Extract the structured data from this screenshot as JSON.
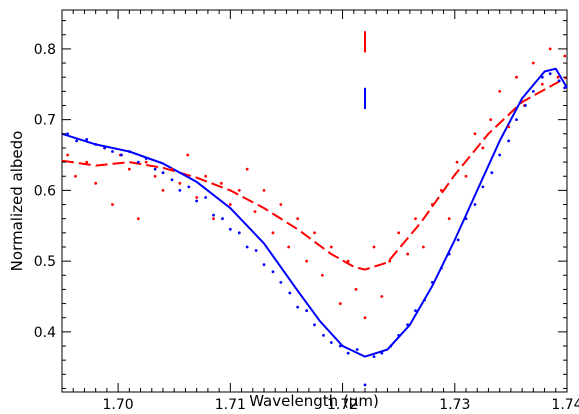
{
  "chart_data": {
    "type": "scatter",
    "xlabel": "Wavelength (μm)",
    "ylabel": "Normalized albedo",
    "xlim": [
      1.695,
      1.74
    ],
    "ylim": [
      0.315,
      0.855
    ],
    "x_ticks": [
      1.7,
      1.71,
      1.72,
      1.73,
      1.74
    ],
    "x_tick_labels": [
      "1.70",
      "1.71",
      "1.72",
      "1.73",
      "1.74"
    ],
    "y_ticks": [
      0.4,
      0.5,
      0.6,
      0.7,
      0.8
    ],
    "y_tick_labels": [
      "0.4",
      "0.5",
      "0.6",
      "0.7",
      "0.8"
    ],
    "grid": false,
    "markers": [
      {
        "x": 1.722,
        "y_range": [
          0.795,
          0.825
        ],
        "color": "#ff0000"
      },
      {
        "x": 1.722,
        "y_range": [
          0.715,
          0.745
        ],
        "color": "#0000ff"
      }
    ],
    "series": [
      {
        "color": "#ff0000",
        "style": "points",
        "x": [
          1.6955,
          1.6962,
          1.6972,
          1.698,
          1.6988,
          1.6995,
          1.7002,
          1.701,
          1.7018,
          1.7025,
          1.7033,
          1.704,
          1.7048,
          1.7055,
          1.7062,
          1.707,
          1.7078,
          1.7085,
          1.7092,
          1.71,
          1.7108,
          1.7115,
          1.7122,
          1.713,
          1.7138,
          1.7145,
          1.7152,
          1.716,
          1.7168,
          1.7175,
          1.7182,
          1.719,
          1.7198,
          1.7205,
          1.7212,
          1.722,
          1.7228,
          1.7235,
          1.7242,
          1.725,
          1.7258,
          1.7265,
          1.7272,
          1.728,
          1.7288,
          1.7295,
          1.7302,
          1.731,
          1.7318,
          1.7325,
          1.7332,
          1.734,
          1.7348,
          1.7355,
          1.7362,
          1.737,
          1.7378,
          1.7385,
          1.7392,
          1.7398
        ],
        "y": [
          0.65,
          0.62,
          0.64,
          0.61,
          0.66,
          0.58,
          0.65,
          0.63,
          0.56,
          0.64,
          0.62,
          0.6,
          0.63,
          0.61,
          0.65,
          0.59,
          0.62,
          0.56,
          0.61,
          0.58,
          0.6,
          0.63,
          0.57,
          0.6,
          0.54,
          0.58,
          0.52,
          0.56,
          0.5,
          0.54,
          0.48,
          0.52,
          0.44,
          0.5,
          0.46,
          0.42,
          0.52,
          0.45,
          0.5,
          0.54,
          0.51,
          0.56,
          0.52,
          0.58,
          0.6,
          0.56,
          0.64,
          0.62,
          0.68,
          0.66,
          0.7,
          0.74,
          0.69,
          0.76,
          0.72,
          0.78,
          0.75,
          0.8,
          0.76,
          0.79
        ]
      },
      {
        "color": "#ff0000",
        "style": "dashed-fit",
        "x": [
          1.695,
          1.698,
          1.701,
          1.704,
          1.707,
          1.71,
          1.713,
          1.716,
          1.719,
          1.721,
          1.722,
          1.724,
          1.727,
          1.73,
          1.733,
          1.736,
          1.74
        ],
        "y": [
          0.642,
          0.635,
          0.64,
          0.632,
          0.618,
          0.6,
          0.575,
          0.545,
          0.51,
          0.492,
          0.488,
          0.498,
          0.555,
          0.622,
          0.68,
          0.725,
          0.76
        ]
      },
      {
        "color": "#0000ff",
        "style": "points",
        "x": [
          1.6955,
          1.6963,
          1.6972,
          1.698,
          1.6988,
          1.6995,
          1.7003,
          1.701,
          1.7018,
          1.7025,
          1.7033,
          1.704,
          1.7048,
          1.7055,
          1.7063,
          1.707,
          1.7078,
          1.7085,
          1.7093,
          1.71,
          1.7108,
          1.7115,
          1.7123,
          1.713,
          1.7138,
          1.7145,
          1.7153,
          1.716,
          1.7168,
          1.7175,
          1.7183,
          1.719,
          1.7198,
          1.7205,
          1.7213,
          1.722,
          1.7228,
          1.7235,
          1.7243,
          1.725,
          1.7258,
          1.7265,
          1.7273,
          1.728,
          1.7288,
          1.7295,
          1.7303,
          1.731,
          1.7318,
          1.7325,
          1.7333,
          1.734,
          1.7348,
          1.7355,
          1.7363,
          1.737,
          1.7378,
          1.7385,
          1.7393,
          1.7398
        ],
        "y": [
          0.68,
          0.67,
          0.672,
          0.665,
          0.66,
          0.655,
          0.65,
          0.655,
          0.64,
          0.645,
          0.63,
          0.625,
          0.615,
          0.6,
          0.605,
          0.585,
          0.59,
          0.565,
          0.56,
          0.545,
          0.54,
          0.52,
          0.515,
          0.495,
          0.485,
          0.47,
          0.455,
          0.435,
          0.43,
          0.41,
          0.395,
          0.385,
          0.38,
          0.37,
          0.375,
          0.325,
          0.365,
          0.37,
          0.38,
          0.395,
          0.41,
          0.43,
          0.445,
          0.47,
          0.49,
          0.51,
          0.53,
          0.56,
          0.58,
          0.605,
          0.625,
          0.65,
          0.67,
          0.7,
          0.72,
          0.74,
          0.76,
          0.765,
          0.755,
          0.745
        ]
      },
      {
        "color": "#0000ff",
        "style": "solid-fit",
        "x": [
          1.695,
          1.698,
          1.701,
          1.704,
          1.707,
          1.71,
          1.713,
          1.716,
          1.718,
          1.72,
          1.722,
          1.724,
          1.726,
          1.728,
          1.73,
          1.732,
          1.734,
          1.736,
          1.738,
          1.739,
          1.74
        ],
        "y": [
          0.68,
          0.665,
          0.655,
          0.638,
          0.612,
          0.575,
          0.525,
          0.458,
          0.415,
          0.38,
          0.365,
          0.375,
          0.41,
          0.465,
          0.53,
          0.6,
          0.67,
          0.73,
          0.768,
          0.772,
          0.745
        ]
      }
    ]
  }
}
